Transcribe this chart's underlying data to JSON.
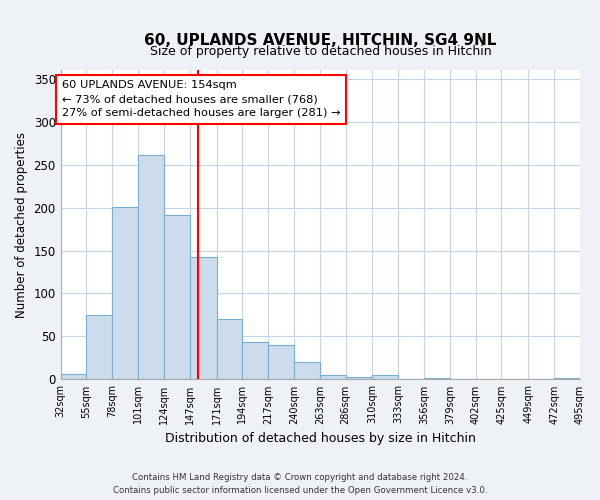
{
  "title": "60, UPLANDS AVENUE, HITCHIN, SG4 9NL",
  "subtitle": "Size of property relative to detached houses in Hitchin",
  "xlabel": "Distribution of detached houses by size in Hitchin",
  "ylabel": "Number of detached properties",
  "bar_edges": [
    32,
    55,
    78,
    101,
    124,
    147,
    171,
    194,
    217,
    240,
    263,
    286,
    310,
    333,
    356,
    379,
    402,
    425,
    449,
    472,
    495
  ],
  "bar_heights": [
    6,
    75,
    201,
    261,
    191,
    142,
    70,
    43,
    40,
    20,
    5,
    3,
    5,
    0,
    2,
    0,
    0,
    1,
    0,
    2
  ],
  "bar_color": "#ccdcec",
  "bar_edge_color": "#7aaed0",
  "property_line_x": 154,
  "property_line_color": "red",
  "annotation_line1": "60 UPLANDS AVENUE: 154sqm",
  "annotation_line2": "← 73% of detached houses are smaller (768)",
  "annotation_line3": "27% of semi-detached houses are larger (281) →",
  "annotation_box_color": "white",
  "annotation_box_edge_color": "red",
  "ylim": [
    0,
    360
  ],
  "yticks": [
    0,
    50,
    100,
    150,
    200,
    250,
    300,
    350
  ],
  "footer_line1": "Contains HM Land Registry data © Crown copyright and database right 2024.",
  "footer_line2": "Contains public sector information licensed under the Open Government Licence v3.0.",
  "bg_color": "#eef2f7",
  "plot_bg_color": "white",
  "grid_color": "#c5d5e5"
}
